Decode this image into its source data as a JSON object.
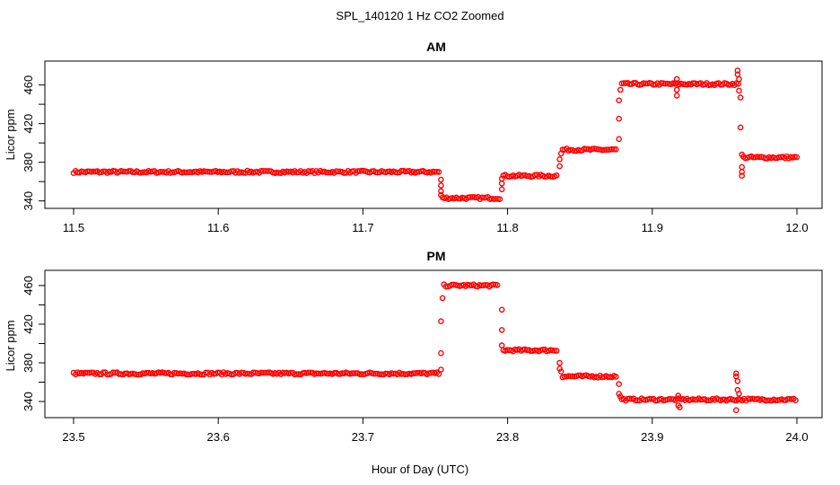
{
  "figure": {
    "title": "SPL_140120  1 Hz CO2 Zoomed",
    "xlabel": "Hour of Day (UTC)"
  },
  "chart_data": [
    {
      "type": "scatter",
      "title": "AM",
      "ylabel": "Licor ppm",
      "xlim": [
        11.5,
        12.0
      ],
      "ylim": [
        336,
        481
      ],
      "xticks": [
        "11.5",
        "11.6",
        "11.7",
        "11.8",
        "11.9",
        "12.0"
      ],
      "yticks": [
        "340",
        "380",
        "420",
        "460"
      ],
      "marker_color": "#ff0000",
      "series": [
        {
          "segments": [
            {
              "x_start": 11.5,
              "x_end": 11.753,
              "y": 370
            },
            {
              "x_start": 11.755,
              "x_end": 11.795,
              "y": 343
            },
            {
              "x_start": 11.797,
              "x_end": 11.835,
              "y": 366
            },
            {
              "x_start": 11.838,
              "x_end": 11.876,
              "y": 393
            },
            {
              "x_start": 11.879,
              "x_end": 11.96,
              "y": 461
            },
            {
              "x_start": 11.963,
              "x_end": 12.0,
              "y": 385
            }
          ],
          "points": [
            [
              11.754,
              362
            ],
            [
              11.754,
              356
            ],
            [
              11.754,
              350
            ],
            [
              11.754,
              346
            ],
            [
              11.796,
              352
            ],
            [
              11.796,
              358
            ],
            [
              11.796,
              363
            ],
            [
              11.836,
              376
            ],
            [
              11.836,
              383
            ],
            [
              11.837,
              389
            ],
            [
              11.877,
              404
            ],
            [
              11.877,
              425
            ],
            [
              11.877,
              444
            ],
            [
              11.878,
              455
            ],
            [
              11.917,
              466
            ],
            [
              11.917,
              455
            ],
            [
              11.917,
              449
            ],
            [
              11.959,
              475
            ],
            [
              11.959,
              471
            ],
            [
              11.96,
              466
            ],
            [
              11.96,
              454
            ],
            [
              11.961,
              447
            ],
            [
              11.961,
              416
            ],
            [
              11.962,
              388
            ],
            [
              11.962,
              375
            ],
            [
              11.962,
              370
            ],
            [
              11.962,
              366
            ]
          ]
        }
      ]
    },
    {
      "type": "scatter",
      "title": "PM",
      "ylabel": "Licor ppm",
      "xlim": [
        23.5,
        24.0
      ],
      "ylim": [
        327,
        472
      ],
      "xticks": [
        "23.5",
        "23.6",
        "23.7",
        "23.8",
        "23.9",
        "24.0"
      ],
      "yticks": [
        "340",
        "380",
        "420",
        "460"
      ],
      "marker_color": "#ff0000",
      "series": [
        {
          "segments": [
            {
              "x_start": 23.5,
              "x_end": 23.753,
              "y": 369
            },
            {
              "x_start": 23.756,
              "x_end": 23.794,
              "y": 460
            },
            {
              "x_start": 23.797,
              "x_end": 23.835,
              "y": 393
            },
            {
              "x_start": 23.838,
              "x_end": 23.876,
              "y": 366
            },
            {
              "x_start": 23.879,
              "x_end": 24.0,
              "y": 342
            }
          ],
          "points": [
            [
              23.754,
              373
            ],
            [
              23.754,
              390
            ],
            [
              23.754,
              423
            ],
            [
              23.755,
              447
            ],
            [
              23.796,
              435
            ],
            [
              23.796,
              414
            ],
            [
              23.796,
              398
            ],
            [
              23.836,
              380
            ],
            [
              23.836,
              374
            ],
            [
              23.837,
              371
            ],
            [
              23.877,
              358
            ],
            [
              23.877,
              348
            ],
            [
              23.878,
              345
            ],
            [
              23.918,
              346
            ],
            [
              23.918,
              336
            ],
            [
              23.919,
              334
            ],
            [
              23.958,
              369
            ],
            [
              23.958,
              366
            ],
            [
              23.959,
              361
            ],
            [
              23.959,
              352
            ],
            [
              23.96,
              348
            ],
            [
              23.958,
              331
            ]
          ]
        }
      ]
    }
  ]
}
